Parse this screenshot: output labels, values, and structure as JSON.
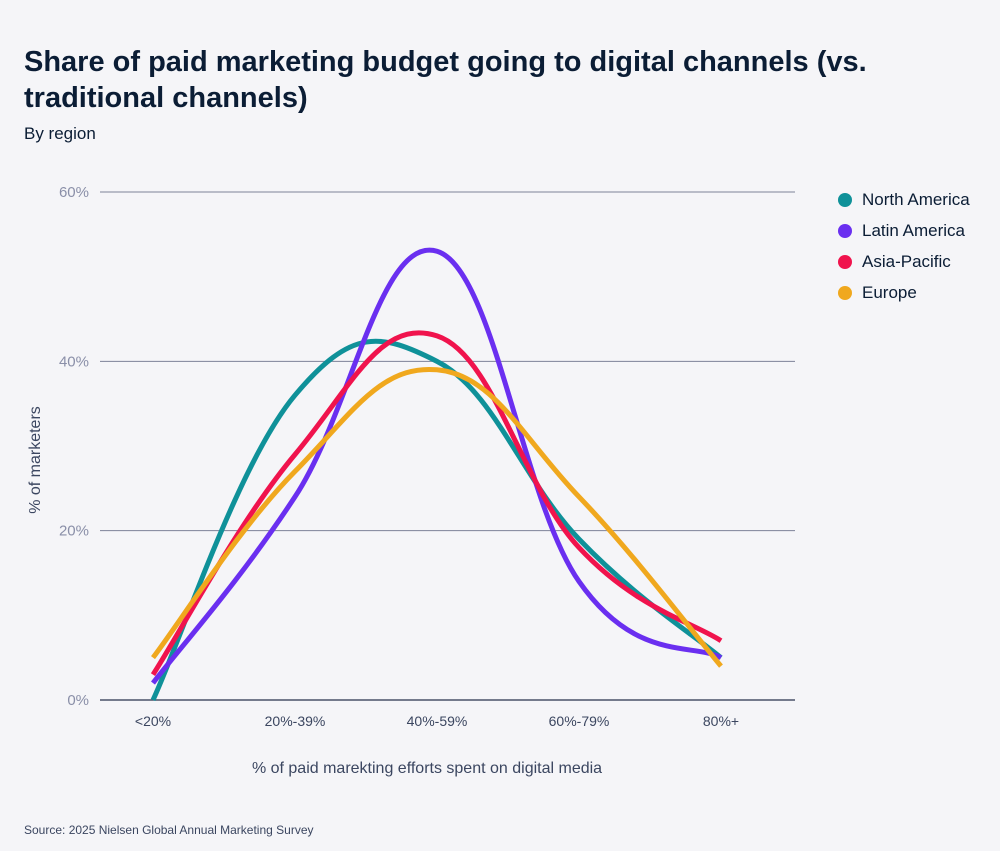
{
  "header": {
    "title": "Share of paid marketing budget going to digital channels (vs. traditional channels)",
    "subtitle": "By region"
  },
  "footer": {
    "source": "Source: 2025 Nielsen Global Annual Marketing Survey"
  },
  "chart_data": {
    "type": "line",
    "smooth": true,
    "categories": [
      "<20%",
      "20%-39%",
      "40%-59%",
      "60%-79%",
      "80%+"
    ],
    "xlabel": "% of paid marekting efforts spent on digital media",
    "ylabel": "% of marketers",
    "ylim": [
      0,
      60
    ],
    "yticks": [
      0,
      20,
      40,
      60
    ],
    "ytick_labels": [
      "0%",
      "20%",
      "40%",
      "60%"
    ],
    "grid": true,
    "legend_position": "top-right",
    "series": [
      {
        "name": "North America",
        "color": "#0f9199",
        "values": [
          0,
          36,
          40,
          19,
          5
        ]
      },
      {
        "name": "Latin America",
        "color": "#6a2ff0",
        "values": [
          2,
          24,
          53,
          14,
          5
        ]
      },
      {
        "name": "Asia-Pacific",
        "color": "#f0134d",
        "values": [
          3,
          29,
          43,
          18,
          7
        ]
      },
      {
        "name": "Europe",
        "color": "#f0a81e",
        "values": [
          5,
          27,
          39,
          24,
          4
        ]
      }
    ]
  }
}
